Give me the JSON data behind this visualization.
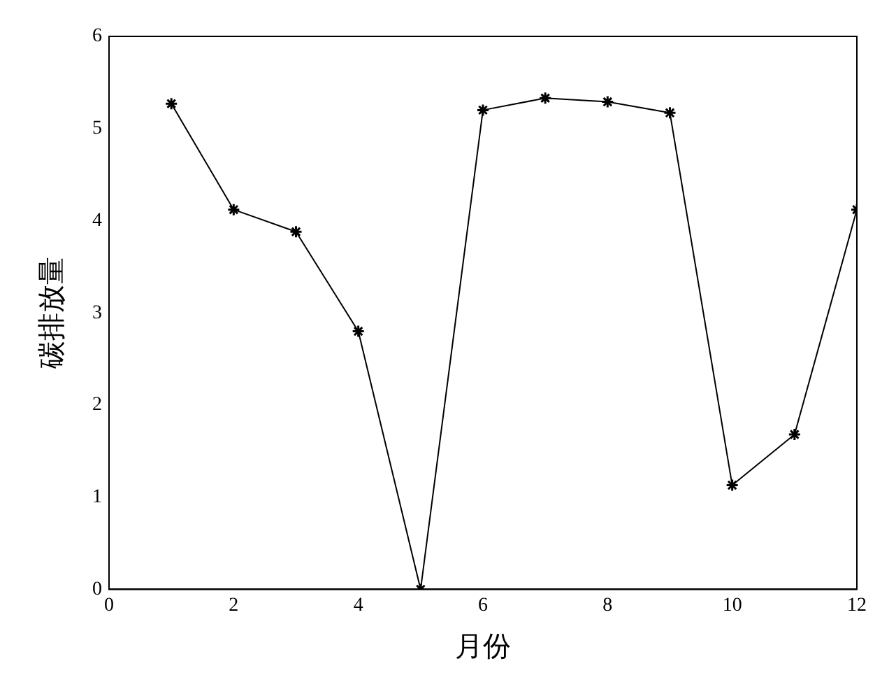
{
  "chart_data": {
    "type": "line",
    "xlabel": "月份",
    "ylabel": "碳排放量",
    "x": [
      1,
      2,
      3,
      4,
      5,
      6,
      7,
      8,
      9,
      10,
      11,
      12
    ],
    "series": [
      {
        "color": "#000000",
        "values": [
          5.27,
          4.12,
          3.88,
          2.8,
          0,
          5.2,
          5.33,
          5.29,
          5.17,
          1.13,
          1.68,
          4.12
        ]
      }
    ],
    "xlim": [
      0,
      12
    ],
    "xticks": [
      0,
      2,
      4,
      6,
      8,
      10,
      12
    ],
    "ylim": [
      0,
      6
    ],
    "yticks": [
      0,
      1,
      2,
      3,
      4,
      5,
      6
    ],
    "grid": false,
    "legend": false,
    "marker": "cross",
    "line_style": "solid"
  }
}
